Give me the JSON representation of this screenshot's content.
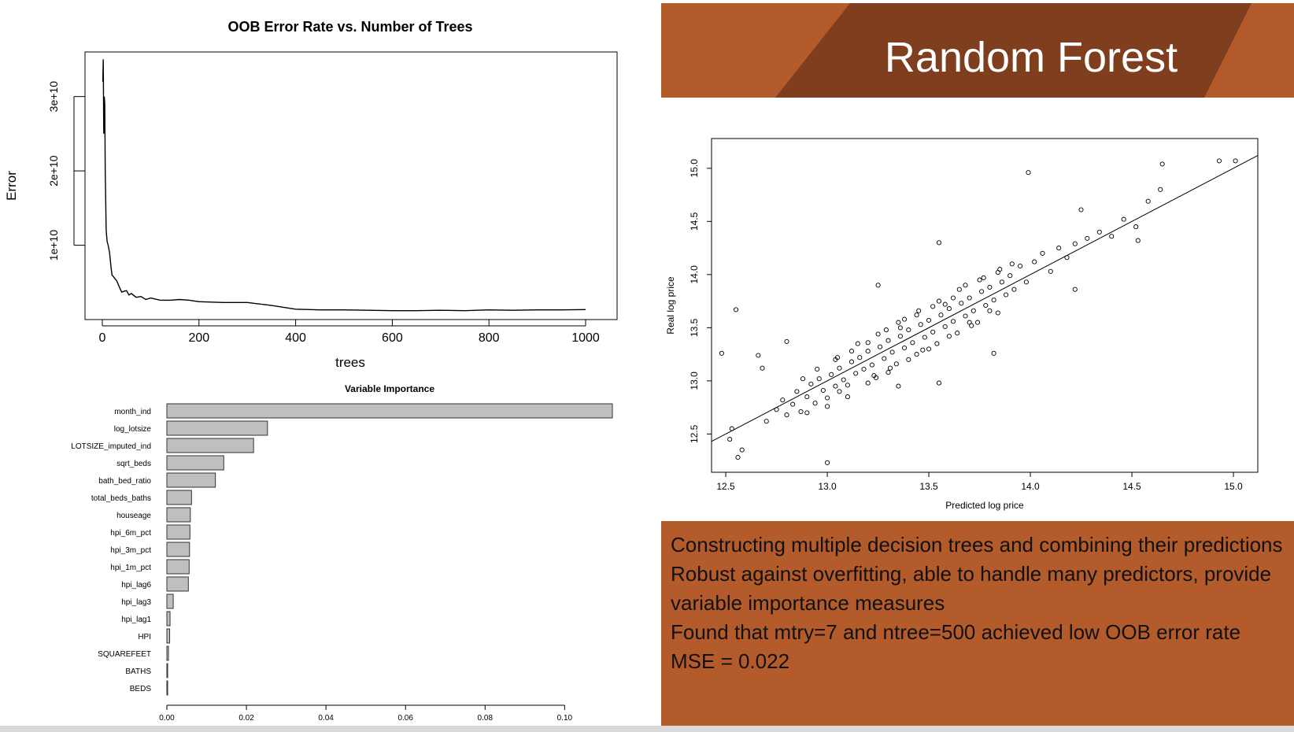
{
  "slide": {
    "title": "Random Forest",
    "colors": {
      "band_light": "#b45b2b",
      "band_dark": "#7f3f1e",
      "text_box": "#b45b2b"
    },
    "bullets": [
      "Constructing multiple decision trees and combining their predictions",
      "Robust against overfitting, able to handle many predictors, provide variable importance measures",
      "Found that mtry=7 and ntree=500 achieved low OOB error rate",
      "MSE = 0.022"
    ]
  },
  "chart_data": [
    {
      "type": "line",
      "title": "OOB Error Rate vs. Number of Trees",
      "xlabel": "trees",
      "ylabel": "Error",
      "xlim": [
        0,
        1000
      ],
      "ylim": [
        0,
        36000000000.0
      ],
      "xticks": [
        0,
        200,
        400,
        600,
        800,
        1000
      ],
      "xtick_labels": [
        "0",
        "200",
        "400",
        "600",
        "800",
        "1000"
      ],
      "yticks": [
        10000000000.0,
        20000000000.0,
        30000000000.0
      ],
      "ytick_labels": [
        "1e+10",
        "2e+10",
        "3e+10"
      ],
      "x": [
        1,
        2,
        3,
        4,
        5,
        6,
        8,
        10,
        12,
        15,
        18,
        20,
        25,
        30,
        35,
        40,
        45,
        50,
        55,
        60,
        70,
        80,
        90,
        100,
        120,
        140,
        160,
        180,
        200,
        250,
        300,
        350,
        400,
        450,
        500,
        550,
        600,
        650,
        700,
        750,
        800,
        850,
        900,
        950,
        1000
      ],
      "y": [
        32000000000.0,
        35000000000.0,
        25000000000.0,
        30000000000.0,
        29000000000.0,
        20000000000.0,
        12000000000.0,
        10500000000.0,
        10000000000.0,
        9000000000.0,
        7000000000.0,
        6000000000.0,
        5600000000.0,
        5200000000.0,
        4400000000.0,
        3700000000.0,
        3800000000.0,
        3900000000.0,
        3300000000.0,
        3500000000.0,
        3000000000.0,
        3100000000.0,
        2700000000.0,
        2900000000.0,
        2600000000.0,
        2600000000.0,
        2700000000.0,
        2600000000.0,
        2400000000.0,
        2300000000.0,
        2300000000.0,
        1900000000.0,
        1400000000.0,
        1300000000.0,
        1300000000.0,
        1250000000.0,
        1200000000.0,
        1200000000.0,
        1250000000.0,
        1200000000.0,
        1300000000.0,
        1250000000.0,
        1300000000.0,
        1300000000.0,
        1350000000.0
      ],
      "grid": false
    },
    {
      "type": "bar",
      "orientation": "horizontal",
      "title": "Variable Importance",
      "categories": [
        "month_ind",
        "log_lotsize",
        "LOTSIZE_imputed_ind",
        "sqrt_beds",
        "bath_bed_ratio",
        "total_beds_baths",
        "houseage",
        "hpi_6m_pct",
        "hpi_3m_pct",
        "hpi_1m_pct",
        "hpi_lag6",
        "hpi_lag3",
        "hpi_lag1",
        "HPI",
        "SQUAREFEET",
        "BATHS",
        "BEDS"
      ],
      "values": [
        0.112,
        0.0253,
        0.0218,
        0.0143,
        0.0122,
        0.0062,
        0.0059,
        0.0058,
        0.0057,
        0.0056,
        0.0054,
        0.0016,
        0.0008,
        0.0007,
        0.0004,
        0.0002,
        0.0001
      ],
      "xlim": [
        0,
        0.112
      ],
      "xticks": [
        0.0,
        0.02,
        0.04,
        0.06,
        0.08,
        0.1
      ],
      "xtick_labels": [
        "0.00",
        "0.02",
        "0.04",
        "0.06",
        "0.08",
        "0.10"
      ],
      "bar_color": "#bfbfbf",
      "grid": false
    },
    {
      "type": "scatter",
      "xlabel": "Predicted log price",
      "ylabel": "Real log price",
      "xlim": [
        12.43,
        15.12
      ],
      "ylim": [
        12.14,
        15.28
      ],
      "xticks": [
        12.5,
        13.0,
        13.5,
        14.0,
        14.5,
        15.0
      ],
      "xtick_labels": [
        "12.5",
        "13.0",
        "13.5",
        "14.0",
        "14.5",
        "15.0"
      ],
      "yticks": [
        12.5,
        13.0,
        13.5,
        14.0,
        14.5,
        15.0
      ],
      "ytick_labels": [
        "12.5",
        "13.0",
        "13.5",
        "14.0",
        "14.5",
        "15.0"
      ],
      "reference_line": {
        "intercept": 0.0,
        "slope": 1.0
      },
      "points": [
        [
          12.48,
          13.26
        ],
        [
          12.55,
          13.67
        ],
        [
          12.52,
          12.45
        ],
        [
          12.56,
          12.28
        ],
        [
          12.66,
          13.24
        ],
        [
          12.8,
          13.37
        ],
        [
          12.68,
          13.12
        ],
        [
          13.0,
          12.23
        ],
        [
          13.99,
          14.96
        ],
        [
          14.65,
          15.04
        ],
        [
          14.93,
          15.07
        ],
        [
          15.01,
          15.07
        ],
        [
          14.64,
          14.8
        ],
        [
          14.25,
          14.61
        ],
        [
          14.58,
          14.69
        ],
        [
          14.22,
          13.86
        ],
        [
          14.53,
          14.32
        ],
        [
          13.55,
          12.98
        ],
        [
          13.35,
          12.95
        ],
        [
          13.82,
          13.26
        ],
        [
          13.25,
          13.9
        ],
        [
          13.55,
          14.3
        ],
        [
          12.53,
          12.55
        ],
        [
          12.58,
          12.35
        ],
        [
          12.7,
          12.62
        ],
        [
          12.75,
          12.73
        ],
        [
          12.78,
          12.82
        ],
        [
          12.8,
          12.68
        ],
        [
          12.83,
          12.78
        ],
        [
          12.85,
          12.9
        ],
        [
          12.87,
          12.71
        ],
        [
          12.9,
          12.85
        ],
        [
          12.92,
          12.97
        ],
        [
          12.94,
          12.79
        ],
        [
          12.96,
          13.02
        ],
        [
          12.98,
          12.91
        ],
        [
          13.0,
          12.84
        ],
        [
          13.02,
          13.06
        ],
        [
          13.04,
          12.95
        ],
        [
          13.06,
          13.12
        ],
        [
          13.08,
          13.01
        ],
        [
          13.1,
          12.96
        ],
        [
          13.12,
          13.18
        ],
        [
          13.14,
          13.07
        ],
        [
          13.16,
          13.22
        ],
        [
          13.18,
          13.11
        ],
        [
          13.2,
          13.28
        ],
        [
          13.22,
          13.15
        ],
        [
          13.24,
          13.03
        ],
        [
          13.26,
          13.32
        ],
        [
          13.28,
          13.21
        ],
        [
          13.3,
          13.38
        ],
        [
          13.32,
          13.27
        ],
        [
          13.34,
          13.16
        ],
        [
          13.36,
          13.42
        ],
        [
          13.38,
          13.31
        ],
        [
          13.4,
          13.48
        ],
        [
          13.42,
          13.36
        ],
        [
          13.44,
          13.25
        ],
        [
          13.46,
          13.53
        ],
        [
          13.48,
          13.41
        ],
        [
          13.5,
          13.57
        ],
        [
          13.52,
          13.46
        ],
        [
          13.54,
          13.35
        ],
        [
          13.56,
          13.62
        ],
        [
          13.58,
          13.51
        ],
        [
          13.6,
          13.68
        ],
        [
          13.62,
          13.56
        ],
        [
          13.64,
          13.45
        ],
        [
          13.66,
          13.73
        ],
        [
          13.68,
          13.61
        ],
        [
          13.7,
          13.78
        ],
        [
          13.72,
          13.66
        ],
        [
          13.74,
          13.55
        ],
        [
          13.76,
          13.84
        ],
        [
          13.78,
          13.71
        ],
        [
          13.8,
          13.88
        ],
        [
          13.82,
          13.76
        ],
        [
          13.84,
          13.64
        ],
        [
          13.86,
          13.93
        ],
        [
          13.88,
          13.81
        ],
        [
          13.9,
          13.99
        ],
        [
          13.92,
          13.86
        ],
        [
          13.95,
          14.08
        ],
        [
          13.98,
          13.93
        ],
        [
          14.02,
          14.12
        ],
        [
          14.06,
          14.2
        ],
        [
          14.1,
          14.03
        ],
        [
          14.14,
          14.25
        ],
        [
          14.18,
          14.16
        ],
        [
          14.22,
          14.29
        ],
        [
          14.28,
          14.34
        ],
        [
          14.34,
          14.4
        ],
        [
          14.4,
          14.36
        ],
        [
          14.46,
          14.52
        ],
        [
          14.52,
          14.45
        ],
        [
          12.9,
          12.7
        ],
        [
          13.0,
          12.76
        ],
        [
          13.1,
          12.85
        ],
        [
          13.2,
          12.98
        ],
        [
          13.3,
          13.08
        ],
        [
          13.4,
          13.2
        ],
        [
          13.5,
          13.3
        ],
        [
          13.6,
          13.42
        ],
        [
          13.7,
          13.55
        ],
        [
          13.8,
          13.66
        ],
        [
          12.95,
          13.11
        ],
        [
          13.05,
          13.22
        ],
        [
          13.15,
          13.35
        ],
        [
          13.25,
          13.44
        ],
        [
          13.35,
          13.55
        ],
        [
          13.45,
          13.66
        ],
        [
          13.55,
          13.75
        ],
        [
          13.65,
          13.86
        ],
        [
          13.75,
          13.95
        ],
        [
          13.85,
          14.05
        ],
        [
          13.12,
          13.28
        ],
        [
          13.31,
          13.12
        ],
        [
          13.47,
          13.29
        ],
        [
          13.62,
          13.78
        ],
        [
          13.38,
          13.58
        ],
        [
          13.23,
          13.05
        ],
        [
          13.71,
          13.52
        ],
        [
          13.58,
          13.72
        ],
        [
          13.44,
          13.62
        ],
        [
          13.29,
          13.48
        ],
        [
          13.04,
          13.2
        ],
        [
          12.88,
          13.02
        ],
        [
          13.77,
          13.97
        ],
        [
          13.84,
          14.02
        ],
        [
          13.91,
          14.1
        ],
        [
          13.68,
          13.9
        ],
        [
          13.52,
          13.7
        ],
        [
          13.36,
          13.5
        ],
        [
          13.2,
          13.36
        ],
        [
          13.06,
          12.9
        ]
      ]
    }
  ]
}
